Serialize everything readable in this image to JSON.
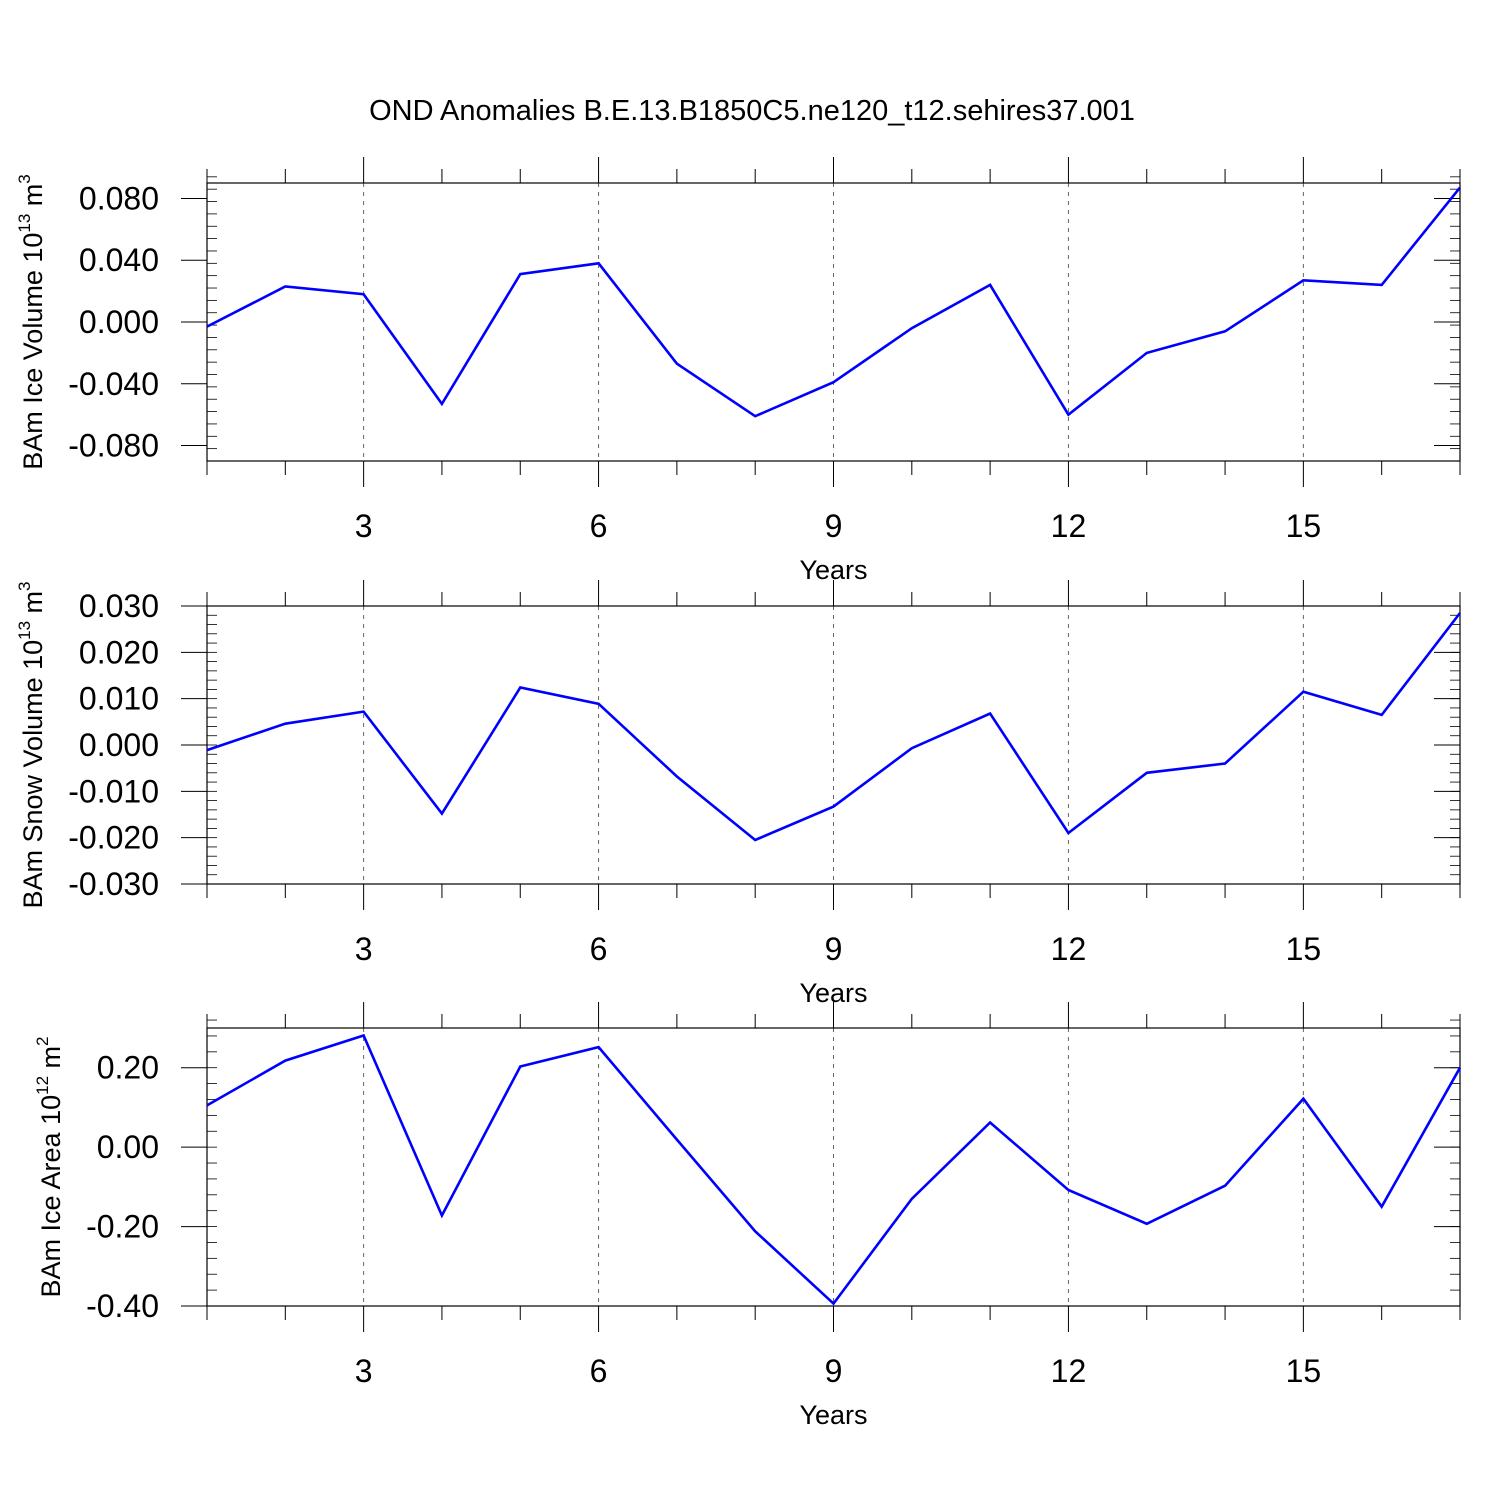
{
  "title": "OND Anomalies B.E.13.B1850C5.ne120_t12.sehires37.001",
  "chart_data": [
    {
      "type": "line",
      "ylabel": {
        "prefix": "BAm Ice Volume 10",
        "exp1": "13",
        "mid": " m",
        "exp2": "3"
      },
      "xlabel": "Years",
      "xlim": [
        1,
        17
      ],
      "ylim": [
        -0.09,
        0.09
      ],
      "yticks": [
        0.08,
        0.04,
        0.0,
        -0.04,
        -0.08
      ],
      "ytick_labels": [
        "0.080",
        "0.040",
        "0.000",
        "-0.040",
        "-0.080"
      ],
      "xticks": [
        3,
        6,
        9,
        12,
        15
      ],
      "xtick_labels": [
        "3",
        "6",
        "9",
        "12",
        "15"
      ],
      "grid": "vertical dashed at major x ticks",
      "series": [
        {
          "color": "#0000ff",
          "x": [
            1,
            2,
            3,
            4,
            5,
            6,
            7,
            8,
            9,
            10,
            11,
            12,
            13,
            14,
            15,
            16,
            17
          ],
          "values": [
            -0.003,
            0.023,
            0.018,
            -0.053,
            0.031,
            0.038,
            -0.027,
            -0.061,
            -0.039,
            -0.004,
            0.024,
            -0.06,
            -0.02,
            -0.006,
            0.027,
            0.024,
            0.087
          ]
        }
      ]
    },
    {
      "type": "line",
      "ylabel": {
        "prefix": "BAm Snow Volume 10",
        "exp1": "13",
        "mid": " m",
        "exp2": "3"
      },
      "xlabel": "Years",
      "xlim": [
        1,
        17
      ],
      "ylim": [
        -0.03,
        0.03
      ],
      "yticks": [
        0.03,
        0.02,
        0.01,
        0.0,
        -0.01,
        -0.02,
        -0.03
      ],
      "ytick_labels": [
        "0.030",
        "0.020",
        "0.010",
        "0.000",
        "-0.010",
        "-0.020",
        "-0.030"
      ],
      "xticks": [
        3,
        6,
        9,
        12,
        15
      ],
      "xtick_labels": [
        "3",
        "6",
        "9",
        "12",
        "15"
      ],
      "grid": "vertical dashed at major x ticks",
      "series": [
        {
          "color": "#0000ff",
          "x": [
            1,
            2,
            3,
            4,
            5,
            6,
            7,
            8,
            9,
            10,
            11,
            12,
            13,
            14,
            15,
            16,
            17
          ],
          "values": [
            -0.0011,
            0.0046,
            0.0072,
            -0.0148,
            0.0124,
            0.0089,
            -0.0068,
            -0.0205,
            -0.0133,
            -0.0007,
            0.0068,
            -0.019,
            -0.006,
            -0.004,
            0.0115,
            0.0065,
            0.0285
          ]
        }
      ]
    },
    {
      "type": "line",
      "ylabel": {
        "prefix": "BAm Ice Area 10",
        "exp1": "12",
        "mid": " m",
        "exp2": "2"
      },
      "xlabel": "Years",
      "xlim": [
        1,
        17
      ],
      "ylim": [
        -0.4,
        0.3
      ],
      "yticks": [
        0.2,
        0.0,
        -0.2,
        -0.4
      ],
      "ytick_labels": [
        "0.20",
        "0.00",
        "-0.20",
        "-0.40"
      ],
      "xticks": [
        3,
        6,
        9,
        12,
        15
      ],
      "xtick_labels": [
        "3",
        "6",
        "9",
        "12",
        "15"
      ],
      "grid": "vertical dashed at major x ticks",
      "series": [
        {
          "color": "#0000ff",
          "x": [
            1,
            2,
            3,
            4,
            5,
            6,
            7,
            8,
            9,
            10,
            11,
            12,
            13,
            14,
            15,
            16,
            17
          ],
          "values": [
            0.105,
            0.218,
            0.281,
            -0.172,
            0.203,
            0.252,
            0.019,
            -0.212,
            -0.394,
            -0.13,
            0.062,
            -0.108,
            -0.193,
            -0.097,
            0.122,
            -0.15,
            0.2
          ]
        }
      ]
    }
  ]
}
